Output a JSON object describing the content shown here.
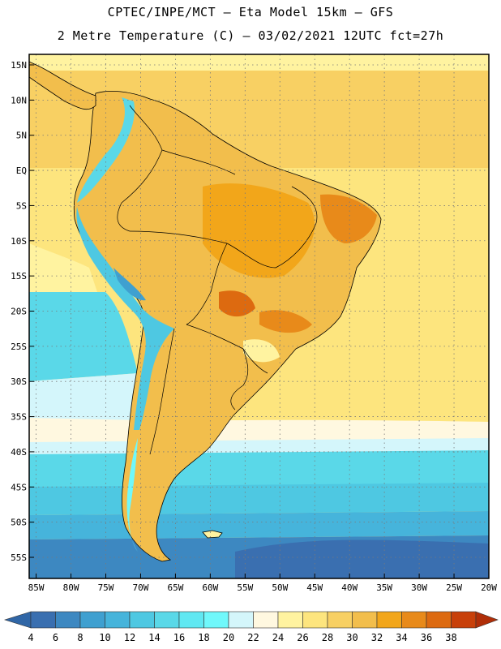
{
  "header": {
    "line1": "CPTEC/INPE/MCT –  Eta Model 15km – GFS",
    "line2": "2 Metre Temperature (C) – 03/02/2021 12UTC fct=27h"
  },
  "map": {
    "lat_labels": [
      "15N",
      "10N",
      "5N",
      "EQ",
      "5S",
      "10S",
      "15S",
      "20S",
      "25S",
      "30S",
      "35S",
      "40S",
      "45S",
      "50S",
      "55S"
    ],
    "lon_labels": [
      "85W",
      "80W",
      "75W",
      "70W",
      "65W",
      "60W",
      "55W",
      "50W",
      "45W",
      "40W",
      "35W",
      "30W",
      "25W",
      "20W"
    ],
    "lat_range": [
      -58,
      16.5
    ],
    "lon_range": [
      -86,
      -20
    ]
  },
  "colorbar": {
    "labels": [
      "4",
      "6",
      "8",
      "10",
      "12",
      "14",
      "16",
      "18",
      "20",
      "22",
      "24",
      "26",
      "28",
      "30",
      "32",
      "34",
      "36",
      "38"
    ],
    "colors": [
      "#3a6fb0",
      "#3d88c1",
      "#3fa0d0",
      "#46b4db",
      "#4ec8e2",
      "#5ad8e8",
      "#60e8f2",
      "#70f8fb",
      "#d4f6fb",
      "#fff8e0",
      "#fff3a0",
      "#fde57e",
      "#f8d063",
      "#f2be4c",
      "#f2a61a",
      "#e88a1a",
      "#dd6a10",
      "#c8400a"
    ],
    "under_color": "#3066a6",
    "over_color": "#b02e08"
  }
}
